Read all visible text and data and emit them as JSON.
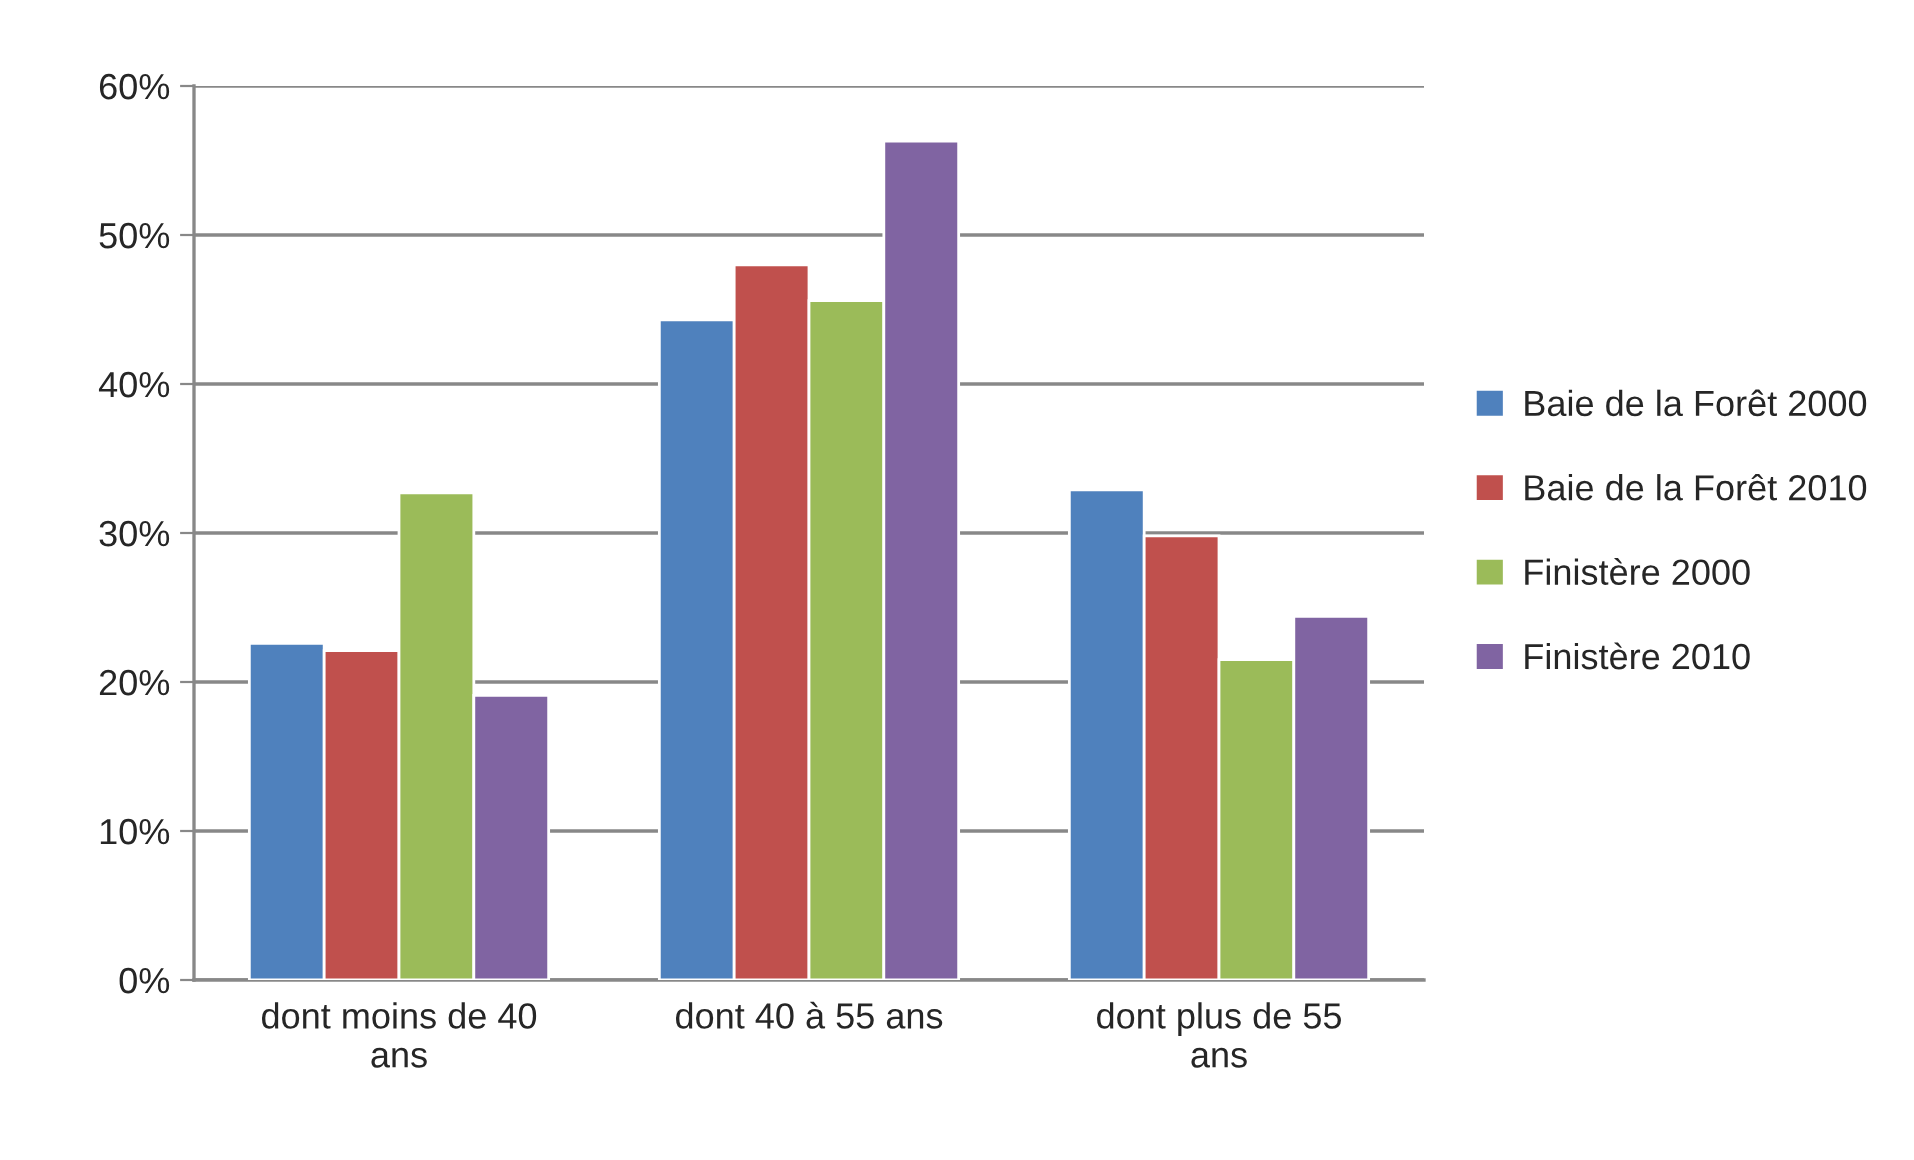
{
  "chart_data": {
    "type": "bar",
    "categories": [
      "dont moins de 40\nans",
      "dont 40 à 55 ans",
      "dont plus de 55\nans"
    ],
    "series": [
      {
        "name": "Baie de la Forêt 2000",
        "color": "#4f81bd",
        "values": [
          22.6,
          44.3,
          32.9
        ]
      },
      {
        "name": "Baie de la Forêt 2010",
        "color": "#c0504d",
        "values": [
          22.1,
          48.0,
          29.8
        ]
      },
      {
        "name": "Finistère 2000",
        "color": "#9bbb59",
        "values": [
          32.7,
          45.6,
          21.5
        ]
      },
      {
        "name": "Finistère 2010",
        "color": "#8064a2",
        "values": [
          19.1,
          56.3,
          24.4
        ]
      }
    ],
    "ylim": [
      0,
      60
    ],
    "yticks": [
      {
        "value": 0,
        "label": "0%"
      },
      {
        "value": 10,
        "label": "10%"
      },
      {
        "value": 20,
        "label": "20%"
      },
      {
        "value": 30,
        "label": "30%"
      },
      {
        "value": 40,
        "label": "40%"
      },
      {
        "value": 50,
        "label": "50%"
      },
      {
        "value": 60,
        "label": "60%"
      }
    ],
    "grid": "y",
    "legend": "right"
  }
}
